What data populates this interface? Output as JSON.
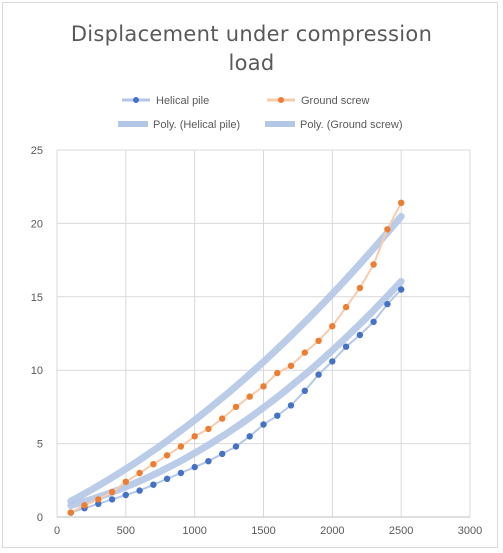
{
  "chart_data": {
    "type": "scatter",
    "title_line1": "Displacement under compression",
    "title_line2": "load",
    "xlabel": "",
    "ylabel": "",
    "xlim": [
      0,
      3000
    ],
    "ylim": [
      0,
      25
    ],
    "x_ticks": [
      "0",
      "500",
      "1000",
      "1500",
      "2000",
      "2500",
      "3000"
    ],
    "y_ticks": [
      "0",
      "5",
      "10",
      "15",
      "20",
      "25"
    ],
    "grid": "vertical and horizontal",
    "legend_position": "top",
    "legend": {
      "helical": "Helical pile",
      "ground": "Ground screw",
      "poly_helical": "Poly. (Helical pile)",
      "poly_ground": "Poly. (Ground screw)"
    },
    "x": [
      100,
      200,
      300,
      400,
      500,
      600,
      700,
      800,
      900,
      1000,
      1100,
      1200,
      1300,
      1400,
      1500,
      1600,
      1700,
      1800,
      1900,
      2000,
      2100,
      2200,
      2300,
      2400,
      2500
    ],
    "series": [
      {
        "name": "Helical pile",
        "color": "#4472c4",
        "values": [
          0.3,
          0.6,
          0.9,
          1.2,
          1.5,
          1.8,
          2.2,
          2.6,
          3.0,
          3.4,
          3.8,
          4.3,
          4.8,
          5.5,
          6.3,
          6.9,
          7.6,
          8.6,
          9.7,
          10.6,
          11.6,
          12.4,
          13.3,
          14.5,
          15.5
        ]
      },
      {
        "name": "Ground screw",
        "color": "#ed7d31",
        "values": [
          0.3,
          0.8,
          1.2,
          1.7,
          2.4,
          3.0,
          3.6,
          4.2,
          4.8,
          5.5,
          6.0,
          6.7,
          7.5,
          8.2,
          8.9,
          9.8,
          10.3,
          11.2,
          12.0,
          13.0,
          14.3,
          15.6,
          17.2,
          19.6,
          21.4
        ]
      }
    ],
    "trendlines": [
      {
        "name": "Poly. (Helical pile)",
        "color": "#b4c7e7",
        "coeffs": [
          0.55,
          0.0022,
          1.6e-06
        ]
      },
      {
        "name": "Poly. (Ground screw)",
        "color": "#b4c7e7",
        "coeffs": [
          0.6,
          0.0047,
          1.3e-06
        ]
      }
    ]
  }
}
